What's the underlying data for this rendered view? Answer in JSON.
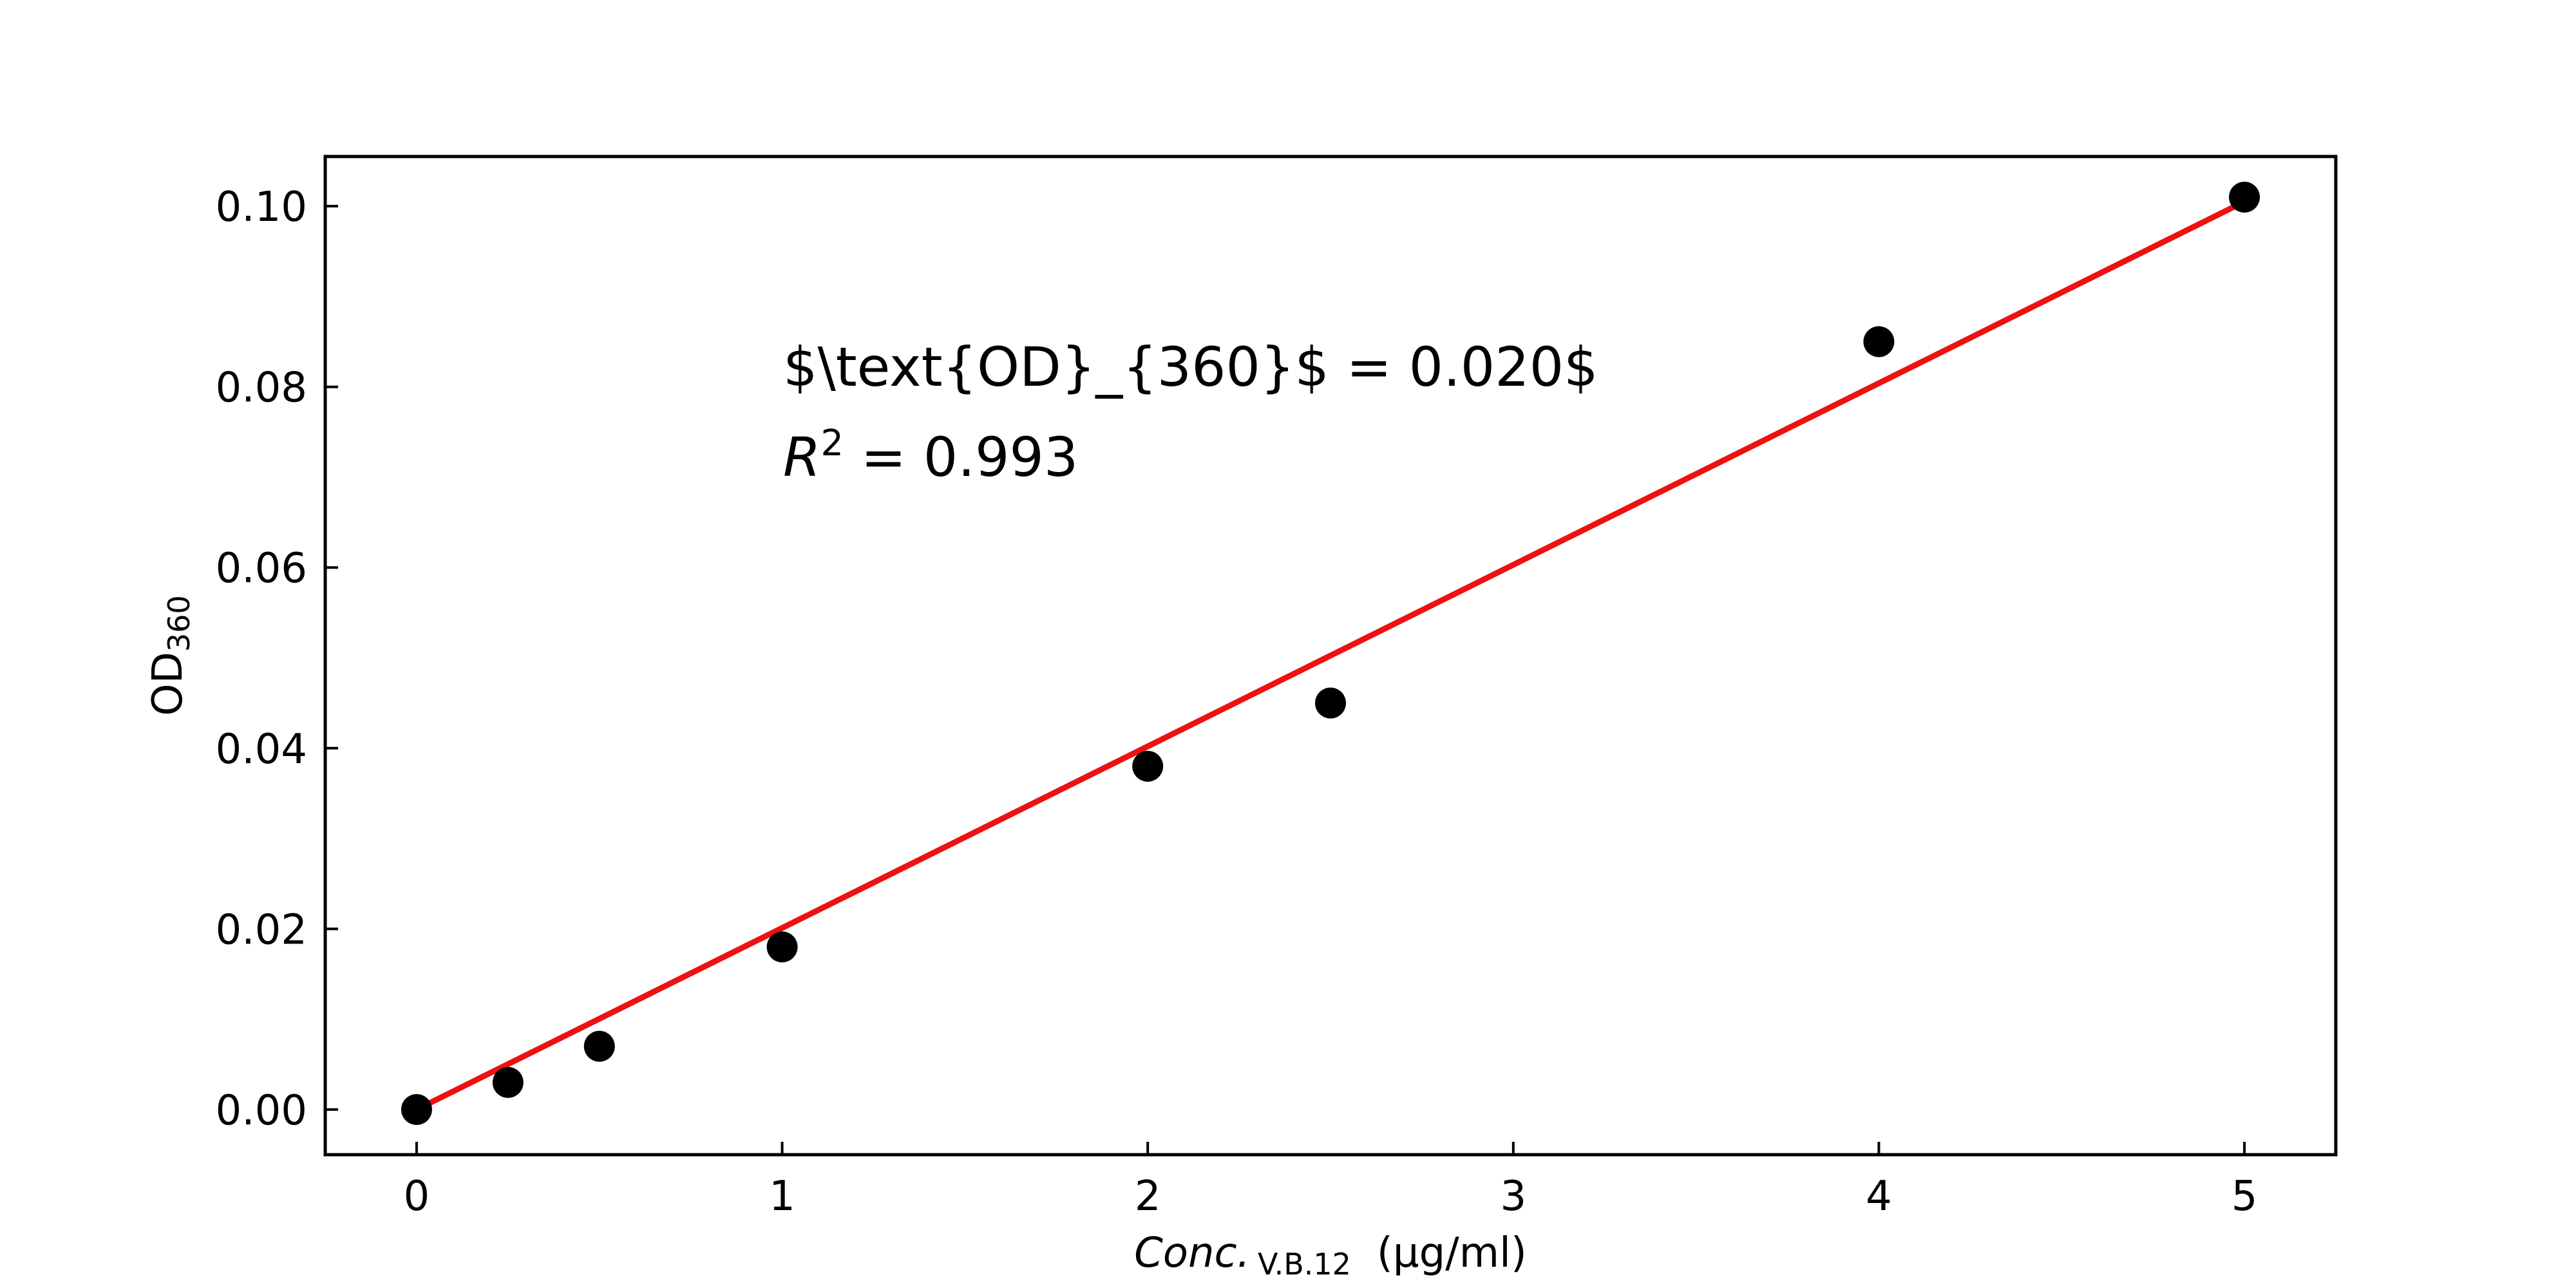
{
  "chart_data": {
    "type": "scatter",
    "xlim": [
      -0.25,
      5.25
    ],
    "ylim": [
      -0.005,
      0.1055
    ],
    "x_ticks": [
      0,
      1,
      2,
      3,
      4,
      5
    ],
    "x_tick_labels": [
      "0",
      "1",
      "2",
      "3",
      "4",
      "5"
    ],
    "y_ticks": [
      0.0,
      0.02,
      0.04,
      0.06,
      0.08,
      0.1
    ],
    "y_tick_labels": [
      "0.00",
      "0.02",
      "0.04",
      "0.06",
      "0.08",
      "0.10"
    ],
    "xlabel": {
      "main": "Conc.",
      "sub": "V.B.12",
      "unit": "(µg/ml)"
    },
    "ylabel": {
      "main": "OD",
      "sub": "360"
    },
    "grid": false,
    "series": [
      {
        "kind": "points",
        "color": "#000000",
        "points": [
          {
            "x": 0,
            "y": 0.0
          },
          {
            "x": 0.25,
            "y": 0.003
          },
          {
            "x": 0.5,
            "y": 0.007
          },
          {
            "x": 1,
            "y": 0.018
          },
          {
            "x": 2,
            "y": 0.038
          },
          {
            "x": 2.5,
            "y": 0.045
          },
          {
            "x": 4,
            "y": 0.085
          },
          {
            "x": 5,
            "y": 0.101
          }
        ]
      },
      {
        "kind": "fit-line",
        "color": "#ee1111",
        "points": [
          {
            "x": 0,
            "y": 0.0
          },
          {
            "x": 5,
            "y": 0.1005
          }
        ]
      }
    ],
    "annotations": {
      "equation": "$\\text{OD}_{360}$ = 0.020$",
      "r2_symbol": "R",
      "r2_exp": "2",
      "r2_rest": " = 0.993"
    }
  }
}
